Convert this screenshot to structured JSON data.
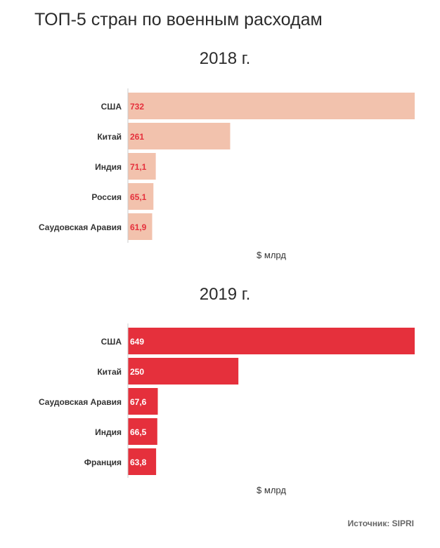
{
  "title": "ТОП-5 стран по военным расходам",
  "source": "Источник: SIPRI",
  "chart_data": [
    {
      "type": "bar",
      "orientation": "horizontal",
      "title": "2018 г.",
      "xlabel": "$ млрд",
      "color": "#f2c2ad",
      "label_color": "#e5303c",
      "grid": false,
      "xlim": [
        0,
        732
      ],
      "categories": [
        "США",
        "Китай",
        "Индия",
        "Россия",
        "Саудовская Аравия"
      ],
      "values": [
        732,
        261,
        71.1,
        65.1,
        61.9
      ],
      "labels": [
        "732",
        "261",
        "71,1",
        "65,1",
        "61,9"
      ]
    },
    {
      "type": "bar",
      "orientation": "horizontal",
      "title": "2019 г.",
      "xlabel": "$ млрд",
      "color": "#e5303c",
      "label_color": "#ffffff",
      "grid": false,
      "xlim": [
        0,
        649
      ],
      "categories": [
        "США",
        "Китай",
        "Саудовская Аравия",
        "Индия",
        "Франция"
      ],
      "values": [
        649,
        250,
        67.6,
        66.5,
        63.8
      ],
      "labels": [
        "649",
        "250",
        "67,6",
        "66,5",
        "63,8"
      ]
    }
  ]
}
